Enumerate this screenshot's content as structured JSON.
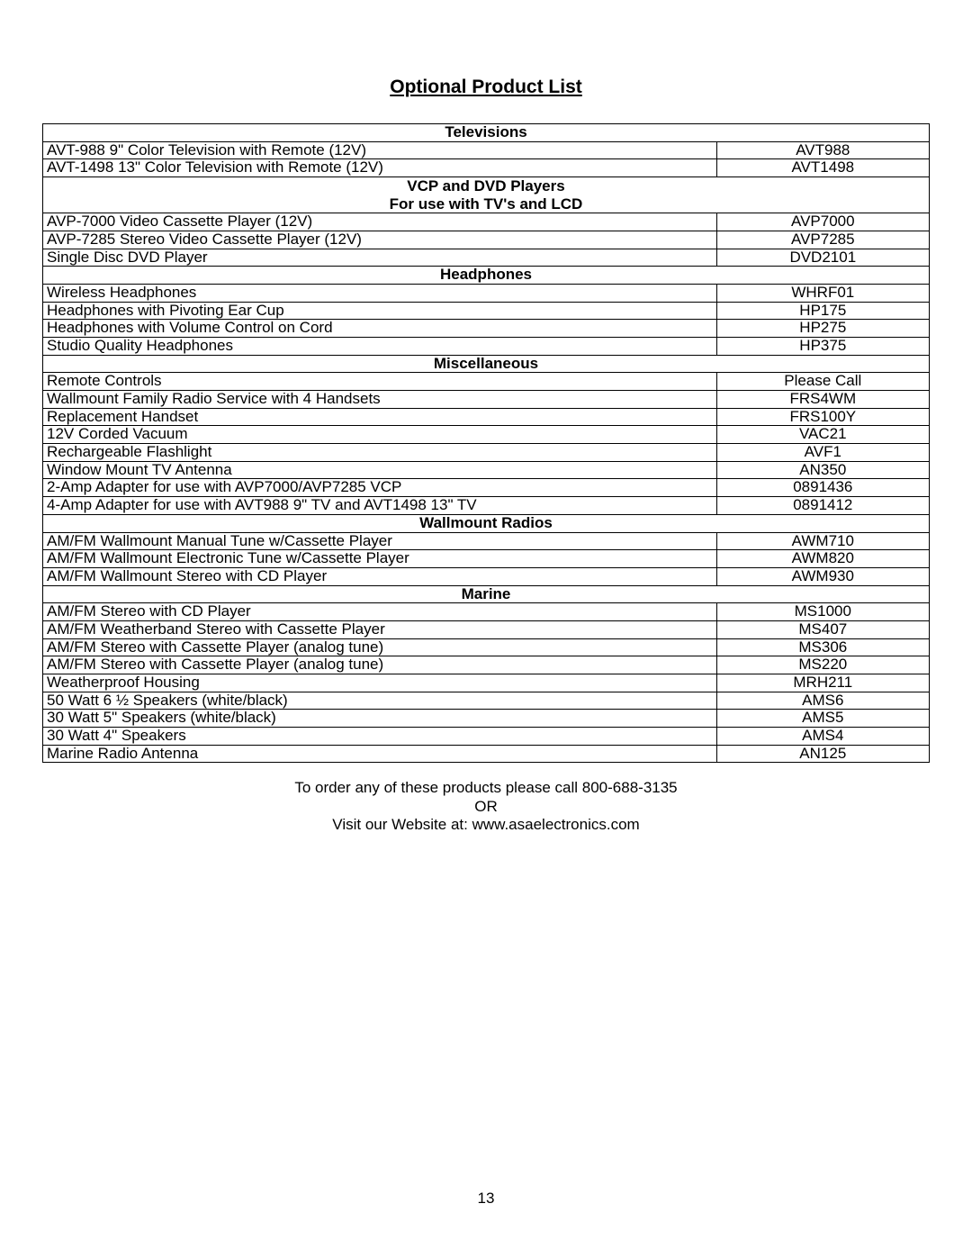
{
  "title": "Optional Product List",
  "sections": [
    {
      "header": "Televisions",
      "rows": [
        {
          "desc": "AVT-988 9\" Color Television with Remote (12V)",
          "code": "AVT988"
        },
        {
          "desc": "AVT-1498 13\" Color Television with Remote (12V)",
          "code": "AVT1498"
        }
      ]
    },
    {
      "header": "VCP and DVD Players",
      "subheader": "For use with TV's and LCD",
      "rows": [
        {
          "desc": "AVP-7000 Video Cassette Player (12V)",
          "code": "AVP7000"
        },
        {
          "desc": "AVP-7285 Stereo Video Cassette Player (12V)",
          "code": "AVP7285"
        },
        {
          "desc": "Single Disc DVD Player",
          "code": "DVD2101"
        }
      ]
    },
    {
      "header": "Headphones",
      "rows": [
        {
          "desc": "Wireless Headphones",
          "code": "WHRF01"
        },
        {
          "desc": "Headphones with Pivoting Ear Cup",
          "code": "HP175"
        },
        {
          "desc": "Headphones with Volume Control on Cord",
          "code": "HP275"
        },
        {
          "desc": "Studio Quality Headphones",
          "code": "HP375"
        }
      ]
    },
    {
      "header": "Miscellaneous",
      "rows": [
        {
          "desc": "Remote Controls",
          "code": "Please Call"
        },
        {
          "desc": "Wallmount Family Radio Service with 4 Handsets",
          "code": "FRS4WM"
        },
        {
          "desc": "Replacement Handset",
          "code": "FRS100Y"
        },
        {
          "desc": "12V Corded Vacuum",
          "code": "VAC21"
        },
        {
          "desc": "Rechargeable Flashlight",
          "code": "AVF1"
        },
        {
          "desc": "Window Mount TV Antenna",
          "code": "AN350"
        },
        {
          "desc": "2-Amp Adapter for use with AVP7000/AVP7285 VCP",
          "code": "0891436"
        },
        {
          "desc": "4-Amp Adapter for use with AVT988 9\" TV and AVT1498 13\" TV",
          "code": "0891412"
        }
      ]
    },
    {
      "header": "Wallmount Radios",
      "rows": [
        {
          "desc": "AM/FM Wallmount Manual Tune w/Cassette Player",
          "code": "AWM710"
        },
        {
          "desc": "AM/FM Wallmount Electronic Tune w/Cassette Player",
          "code": "AWM820"
        },
        {
          "desc": "AM/FM Wallmount Stereo with CD Player",
          "code": "AWM930"
        }
      ]
    },
    {
      "header": "Marine",
      "rows": [
        {
          "desc": "AM/FM Stereo with CD Player",
          "code": "MS1000"
        },
        {
          "desc": "AM/FM Weatherband Stereo with Cassette Player",
          "code": "MS407"
        },
        {
          "desc": "AM/FM Stereo with Cassette Player (analog tune)",
          "code": "MS306"
        },
        {
          "desc": "AM/FM Stereo with Cassette Player (analog tune)",
          "code": "MS220"
        },
        {
          "desc": "Weatherproof Housing",
          "code": "MRH211"
        },
        {
          "desc": "50 Watt 6  ½ Speakers (white/black)",
          "code": "AMS6"
        },
        {
          "desc": "30 Watt 5\" Speakers (white/black)",
          "code": "AMS5"
        },
        {
          "desc": "30 Watt 4\" Speakers",
          "code": "AMS4"
        },
        {
          "desc": "Marine Radio Antenna",
          "code": "AN125"
        }
      ]
    }
  ],
  "footer": {
    "line1": "To order any of these products please call 800-688-3135",
    "line2": "OR",
    "line3": "Visit our Website at: www.asaelectronics.com"
  },
  "page_number": "13"
}
